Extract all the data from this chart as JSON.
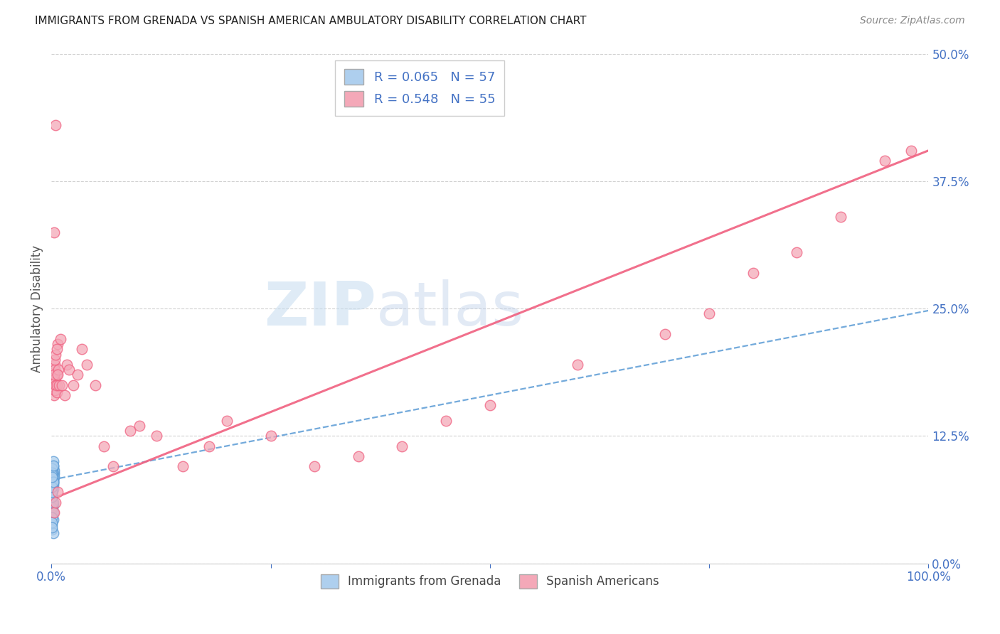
{
  "title": "IMMIGRANTS FROM GRENADA VS SPANISH AMERICAN AMBULATORY DISABILITY CORRELATION CHART",
  "source": "Source: ZipAtlas.com",
  "ylabel": "Ambulatory Disability",
  "xlim": [
    0.0,
    1.0
  ],
  "ylim": [
    0.0,
    0.5
  ],
  "yticks": [
    0.0,
    0.125,
    0.25,
    0.375,
    0.5
  ],
  "ytick_labels": [
    "0.0%",
    "12.5%",
    "25.0%",
    "37.5%",
    "50.0%"
  ],
  "xticks": [
    0.0,
    0.25,
    0.5,
    0.75,
    1.0
  ],
  "xtick_labels": [
    "0.0%",
    "",
    "",
    "",
    "100.0%"
  ],
  "blue_R": 0.065,
  "blue_N": 57,
  "pink_R": 0.548,
  "pink_N": 55,
  "blue_color": "#aecfee",
  "pink_color": "#f4a8b8",
  "blue_line_color": "#5b9bd5",
  "pink_line_color": "#f06080",
  "tick_color": "#4472c4",
  "grid_color": "#cccccc",
  "title_color": "#222222",
  "watermark_zip": "ZIP",
  "watermark_atlas": "atlas",
  "blue_line_x0": 0.0,
  "blue_line_y0": 0.082,
  "blue_line_x1": 1.0,
  "blue_line_y1": 0.248,
  "pink_line_x0": 0.0,
  "pink_line_y0": 0.063,
  "pink_line_x1": 1.0,
  "pink_line_y1": 0.405,
  "blue_scatter_x": [
    0.001,
    0.002,
    0.002,
    0.001,
    0.003,
    0.001,
    0.002,
    0.001,
    0.001,
    0.002,
    0.001,
    0.002,
    0.003,
    0.001,
    0.002,
    0.001,
    0.002,
    0.001,
    0.001,
    0.002,
    0.001,
    0.001,
    0.002,
    0.001,
    0.003,
    0.001,
    0.002,
    0.001,
    0.002,
    0.001,
    0.001,
    0.002,
    0.001,
    0.002,
    0.001,
    0.001,
    0.002,
    0.001,
    0.001,
    0.002,
    0.001,
    0.001,
    0.002,
    0.001,
    0.001,
    0.002,
    0.001,
    0.002,
    0.001,
    0.001,
    0.001,
    0.002,
    0.001,
    0.001,
    0.001,
    0.002,
    0.001
  ],
  "blue_scatter_y": [
    0.095,
    0.09,
    0.1,
    0.085,
    0.088,
    0.075,
    0.082,
    0.07,
    0.065,
    0.092,
    0.078,
    0.083,
    0.091,
    0.072,
    0.086,
    0.068,
    0.079,
    0.063,
    0.058,
    0.095,
    0.074,
    0.081,
    0.088,
    0.071,
    0.085,
    0.066,
    0.077,
    0.062,
    0.057,
    0.093,
    0.076,
    0.084,
    0.089,
    0.073,
    0.087,
    0.069,
    0.08,
    0.064,
    0.059,
    0.096,
    0.053,
    0.048,
    0.043,
    0.038,
    0.033,
    0.03,
    0.055,
    0.05,
    0.045,
    0.04,
    0.035,
    0.06,
    0.065,
    0.07,
    0.075,
    0.08,
    0.085
  ],
  "pink_scatter_x": [
    0.005,
    0.003,
    0.004,
    0.006,
    0.003,
    0.004,
    0.005,
    0.003,
    0.004,
    0.005,
    0.006,
    0.004,
    0.005,
    0.006,
    0.003,
    0.007,
    0.008,
    0.006,
    0.007,
    0.009,
    0.01,
    0.012,
    0.015,
    0.018,
    0.02,
    0.025,
    0.03,
    0.035,
    0.04,
    0.05,
    0.06,
    0.07,
    0.09,
    0.1,
    0.12,
    0.15,
    0.18,
    0.2,
    0.25,
    0.3,
    0.35,
    0.4,
    0.45,
    0.5,
    0.6,
    0.7,
    0.75,
    0.8,
    0.85,
    0.9,
    0.95,
    0.003,
    0.005,
    0.007,
    0.98
  ],
  "pink_scatter_y": [
    0.43,
    0.165,
    0.195,
    0.185,
    0.18,
    0.17,
    0.178,
    0.325,
    0.19,
    0.175,
    0.168,
    0.2,
    0.205,
    0.175,
    0.185,
    0.215,
    0.19,
    0.21,
    0.185,
    0.175,
    0.22,
    0.175,
    0.165,
    0.195,
    0.19,
    0.175,
    0.185,
    0.21,
    0.195,
    0.175,
    0.115,
    0.095,
    0.13,
    0.135,
    0.125,
    0.095,
    0.115,
    0.14,
    0.125,
    0.095,
    0.105,
    0.115,
    0.14,
    0.155,
    0.195,
    0.225,
    0.245,
    0.285,
    0.305,
    0.34,
    0.395,
    0.05,
    0.06,
    0.07,
    0.405
  ]
}
